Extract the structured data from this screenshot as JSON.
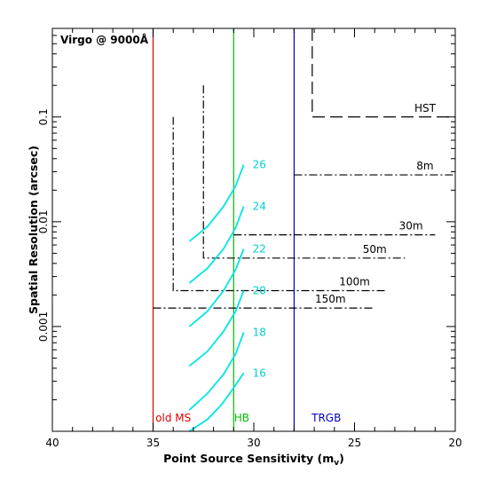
{
  "chart_data": {
    "type": "line",
    "annotation": "Virgo @ 9000Å",
    "xlabel_main": "Point Source Sensitivity (m",
    "xlabel_sub": "v",
    "xlabel_end": ")",
    "ylabel": "Spatial Resolution (arcsec)",
    "xlim": [
      40,
      20
    ],
    "ylim": [
      0.0001,
      0.7
    ],
    "y_scale": "log",
    "x_ticks": [
      40,
      35,
      30,
      25,
      20
    ],
    "x_tick_labels": [
      "40",
      "35",
      "30",
      "25",
      "20"
    ],
    "y_ticks": [
      0.001,
      0.01,
      0.1
    ],
    "y_tick_labels": [
      "0.001",
      "0.01",
      "0.1"
    ],
    "vertical_lines": [
      {
        "x": 35,
        "label": "old MS",
        "color": "#e00000",
        "label_x": 34.0
      },
      {
        "x": 31,
        "label": "HB",
        "color": "#00c000",
        "label_x": 30.6
      },
      {
        "x": 28,
        "label": "TRGB",
        "color": "#0000c0",
        "label_x": 26.4
      }
    ],
    "telescopes": [
      {
        "name": "HST",
        "style": "dashed",
        "mag": 27.1,
        "res": 0.1,
        "x_end": 20,
        "y_top": 0.7,
        "label_x": 21.5
      },
      {
        "name": "8m",
        "style": "dashdot",
        "mag": 28.0,
        "res": 0.028,
        "x_end": 20,
        "y_top": 0.028,
        "label_x": 21.5
      },
      {
        "name": "30m",
        "style": "dashdot",
        "mag": 31.0,
        "res": 0.0075,
        "x_end": 21.0,
        "y_top": 0.0075,
        "label_x": 22.2
      },
      {
        "name": "50m",
        "style": "dashdot",
        "mag": 32.5,
        "res": 0.0045,
        "x_end": 22.5,
        "y_top": 0.2,
        "label_x": 24.0
      },
      {
        "name": "100m",
        "style": "dashdot",
        "mag": 34.0,
        "res": 0.0022,
        "x_end": 23.5,
        "y_top": 0.1,
        "label_x": 25.0
      },
      {
        "name": "150m",
        "style": "dashdot",
        "mag": 35.0,
        "res": 0.0015,
        "x_end": 24.0,
        "y_top": 0.0015,
        "label_x": 26.2
      }
    ],
    "distance_curves": [
      {
        "label": "26",
        "points": [
          [
            33.2,
            0.0065
          ],
          [
            32.3,
            0.009
          ],
          [
            31.5,
            0.014
          ],
          [
            30.9,
            0.022
          ],
          [
            30.5,
            0.035
          ]
        ]
      },
      {
        "label": "24",
        "points": [
          [
            33.2,
            0.0026
          ],
          [
            32.3,
            0.0036
          ],
          [
            31.5,
            0.0055
          ],
          [
            30.9,
            0.0088
          ],
          [
            30.5,
            0.014
          ]
        ]
      },
      {
        "label": "22",
        "points": [
          [
            33.2,
            0.001
          ],
          [
            32.3,
            0.0014
          ],
          [
            31.5,
            0.0022
          ],
          [
            30.9,
            0.0035
          ],
          [
            30.5,
            0.0055
          ]
        ]
      },
      {
        "label": "20",
        "points": [
          [
            33.2,
            0.00042
          ],
          [
            32.3,
            0.00058
          ],
          [
            31.5,
            0.0009
          ],
          [
            30.9,
            0.0014
          ],
          [
            30.5,
            0.0022
          ]
        ]
      },
      {
        "label": "18",
        "points": [
          [
            33.2,
            0.00016
          ],
          [
            32.3,
            0.00023
          ],
          [
            31.5,
            0.00035
          ],
          [
            30.9,
            0.00055
          ],
          [
            30.5,
            0.00088
          ]
        ]
      },
      {
        "label": "16",
        "points": [
          [
            33.2,
            0.0001
          ],
          [
            32.3,
            0.00013
          ],
          [
            31.6,
            0.00018
          ],
          [
            31.0,
            0.00026
          ],
          [
            30.5,
            0.00036
          ]
        ]
      }
    ],
    "colors": {
      "axis": "#000000",
      "curve": "#00e5e5",
      "curve_label": "#00d0d0",
      "telescope": "#000000"
    },
    "grid": false,
    "legend": "none"
  }
}
